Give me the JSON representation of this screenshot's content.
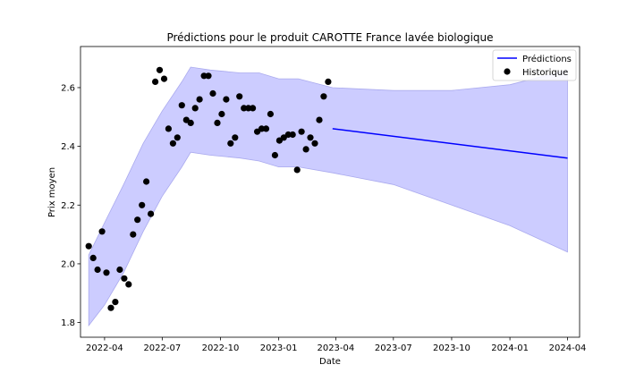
{
  "chart_data": {
    "type": "line",
    "title": "Prédictions pour le produit CAROTTE France lavée biologique",
    "xlabel": "Date",
    "ylabel": "Prix moyen",
    "xlim": [
      "2022-02-22",
      "2024-04-20"
    ],
    "ylim": [
      1.75,
      2.74
    ],
    "x_ticks": [
      "2022-04",
      "2022-07",
      "2022-10",
      "2023-01",
      "2023-04",
      "2023-07",
      "2023-10",
      "2024-01",
      "2024-04"
    ],
    "x_tick_dates": [
      "2022-04-01",
      "2022-07-01",
      "2022-10-01",
      "2023-01-01",
      "2023-04-01",
      "2023-07-01",
      "2023-10-01",
      "2024-01-01",
      "2024-04-01"
    ],
    "y_ticks": [
      1.8,
      2.0,
      2.2,
      2.4,
      2.6
    ],
    "y_tick_labels": [
      "1.8",
      "2.0",
      "2.2",
      "2.4",
      "2.6"
    ],
    "grid": false,
    "legend": {
      "position": "top-right",
      "entries": [
        "Prédictions",
        "Historique"
      ]
    },
    "colors": {
      "prediction": "#0000ff",
      "history": "#000000",
      "band": "#ccccff",
      "band_edge": "#aaaaee"
    },
    "series": [
      {
        "name": "Historique",
        "kind": "scatter",
        "points": [
          [
            "2022-03-07",
            2.06
          ],
          [
            "2022-03-14",
            2.02
          ],
          [
            "2022-03-21",
            1.98
          ],
          [
            "2022-03-28",
            2.11
          ],
          [
            "2022-04-04",
            1.97
          ],
          [
            "2022-04-11",
            1.85
          ],
          [
            "2022-04-18",
            1.87
          ],
          [
            "2022-04-25",
            1.98
          ],
          [
            "2022-05-02",
            1.95
          ],
          [
            "2022-05-09",
            1.93
          ],
          [
            "2022-05-16",
            2.1
          ],
          [
            "2022-05-23",
            2.15
          ],
          [
            "2022-05-30",
            2.2
          ],
          [
            "2022-06-06",
            2.28
          ],
          [
            "2022-06-13",
            2.17
          ],
          [
            "2022-06-20",
            2.62
          ],
          [
            "2022-06-27",
            2.66
          ],
          [
            "2022-07-04",
            2.63
          ],
          [
            "2022-07-11",
            2.46
          ],
          [
            "2022-07-18",
            2.41
          ],
          [
            "2022-07-25",
            2.43
          ],
          [
            "2022-08-01",
            2.54
          ],
          [
            "2022-08-08",
            2.49
          ],
          [
            "2022-08-15",
            2.48
          ],
          [
            "2022-08-22",
            2.53
          ],
          [
            "2022-08-29",
            2.56
          ],
          [
            "2022-09-05",
            2.64
          ],
          [
            "2022-09-12",
            2.64
          ],
          [
            "2022-09-19",
            2.58
          ],
          [
            "2022-09-26",
            2.48
          ],
          [
            "2022-10-03",
            2.51
          ],
          [
            "2022-10-10",
            2.56
          ],
          [
            "2022-10-17",
            2.41
          ],
          [
            "2022-10-24",
            2.43
          ],
          [
            "2022-10-31",
            2.57
          ],
          [
            "2022-11-07",
            2.53
          ],
          [
            "2022-11-14",
            2.53
          ],
          [
            "2022-11-21",
            2.53
          ],
          [
            "2022-11-28",
            2.45
          ],
          [
            "2022-12-05",
            2.46
          ],
          [
            "2022-12-12",
            2.46
          ],
          [
            "2022-12-19",
            2.51
          ],
          [
            "2022-12-26",
            2.37
          ],
          [
            "2023-01-02",
            2.42
          ],
          [
            "2023-01-09",
            2.43
          ],
          [
            "2023-01-16",
            2.44
          ],
          [
            "2023-01-23",
            2.44
          ],
          [
            "2023-01-30",
            2.32
          ],
          [
            "2023-02-06",
            2.45
          ],
          [
            "2023-02-13",
            2.39
          ],
          [
            "2023-02-20",
            2.43
          ],
          [
            "2023-02-27",
            2.41
          ],
          [
            "2023-03-06",
            2.49
          ],
          [
            "2023-03-13",
            2.57
          ],
          [
            "2023-03-20",
            2.62
          ]
        ]
      },
      {
        "name": "Prédictions",
        "kind": "line",
        "points": [
          [
            "2023-03-27",
            2.46
          ],
          [
            "2024-04-01",
            2.36
          ]
        ]
      },
      {
        "name": "",
        "kind": "band",
        "upper": [
          [
            "2022-03-07",
            2.03
          ],
          [
            "2022-04-01",
            2.14
          ],
          [
            "2022-05-01",
            2.27
          ],
          [
            "2022-06-01",
            2.41
          ],
          [
            "2022-07-01",
            2.52
          ],
          [
            "2022-08-01",
            2.62
          ],
          [
            "2022-08-15",
            2.67
          ],
          [
            "2022-09-15",
            2.66
          ],
          [
            "2022-11-01",
            2.65
          ],
          [
            "2022-12-01",
            2.65
          ],
          [
            "2023-01-01",
            2.63
          ],
          [
            "2023-02-01",
            2.63
          ],
          [
            "2023-03-27",
            2.6
          ],
          [
            "2023-07-01",
            2.59
          ],
          [
            "2023-10-01",
            2.59
          ],
          [
            "2024-01-01",
            2.61
          ],
          [
            "2024-04-01",
            2.66
          ]
        ],
        "lower": [
          [
            "2022-03-07",
            1.79
          ],
          [
            "2022-04-01",
            1.86
          ],
          [
            "2022-05-01",
            1.97
          ],
          [
            "2022-06-01",
            2.11
          ],
          [
            "2022-07-01",
            2.23
          ],
          [
            "2022-08-01",
            2.33
          ],
          [
            "2022-08-15",
            2.38
          ],
          [
            "2022-09-15",
            2.37
          ],
          [
            "2022-11-01",
            2.36
          ],
          [
            "2022-12-01",
            2.35
          ],
          [
            "2023-01-01",
            2.33
          ],
          [
            "2023-02-01",
            2.33
          ],
          [
            "2023-03-27",
            2.31
          ],
          [
            "2023-07-01",
            2.27
          ],
          [
            "2023-10-01",
            2.2
          ],
          [
            "2024-01-01",
            2.13
          ],
          [
            "2024-04-01",
            2.04
          ]
        ]
      }
    ]
  }
}
